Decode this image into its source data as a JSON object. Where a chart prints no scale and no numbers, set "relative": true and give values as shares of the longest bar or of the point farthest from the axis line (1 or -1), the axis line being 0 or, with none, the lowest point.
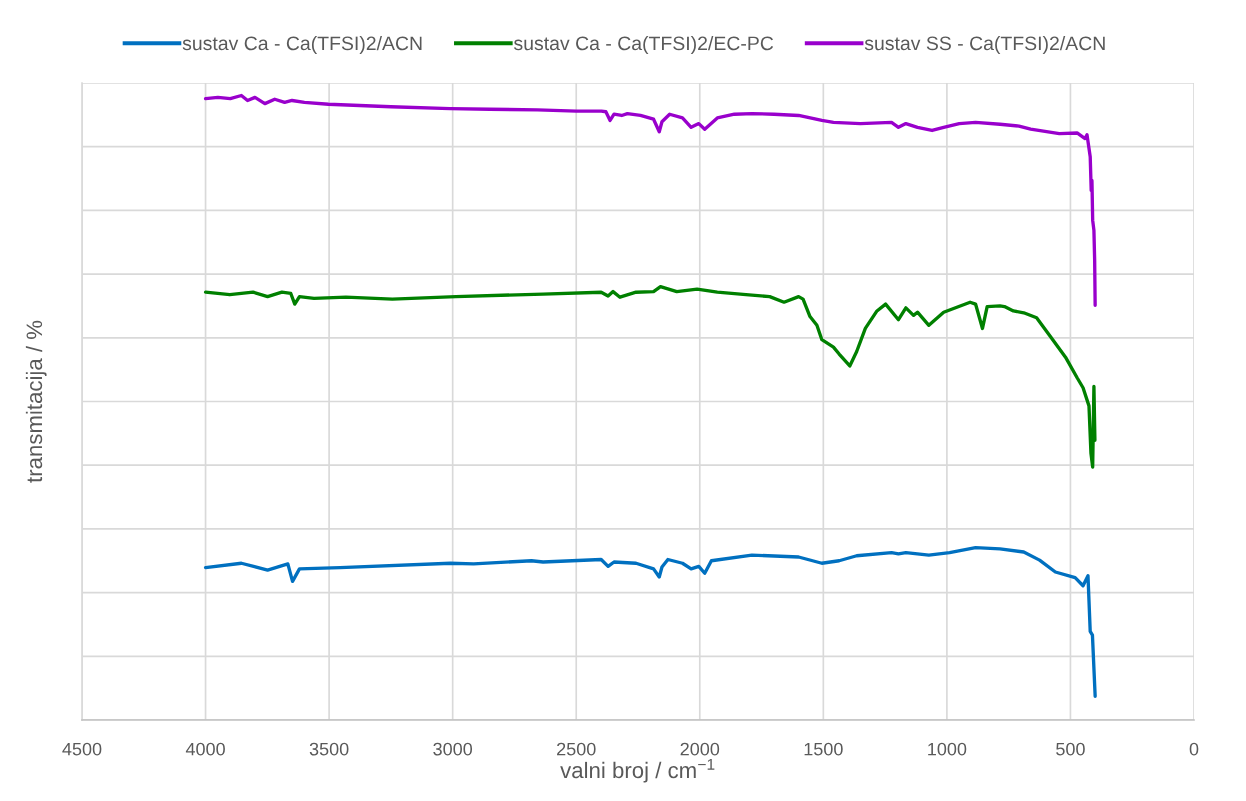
{
  "chart_data": {
    "type": "line",
    "relative": true,
    "xlabel": "valni broj / cm$^{−1}$",
    "ylabel": "transmitacija / %",
    "xlim": [
      4500,
      0
    ],
    "xticks": [
      4500,
      4000,
      3500,
      3000,
      2500,
      2000,
      1500,
      1000,
      500,
      0
    ],
    "grid": true,
    "legend": "top",
    "line_style": "solid",
    "series": [
      {
        "name": "sustav Ca - Ca(TFSI)2/ACN",
        "color": "#0070c0",
        "x": [
          4000,
          3855,
          3749,
          3667,
          3648,
          3620,
          3456,
          3009,
          2915,
          2681,
          2634,
          2399,
          2371,
          2347,
          2258,
          2187,
          2164,
          2153,
          2129,
          2070,
          2035,
          2004,
          1980,
          1953,
          1789,
          1600,
          1506,
          1436,
          1365,
          1224,
          1196,
          1166,
          1073,
          989,
          884,
          785,
          689,
          625,
          561,
          481,
          449,
          429,
          420,
          411,
          400
        ],
        "values": [
          0.244,
          0.251,
          0.24,
          0.25,
          0.222,
          0.242,
          0.244,
          0.251,
          0.25,
          0.255,
          0.253,
          0.257,
          0.246,
          0.253,
          0.251,
          0.242,
          0.229,
          0.245,
          0.257,
          0.251,
          0.242,
          0.246,
          0.235,
          0.255,
          0.264,
          0.261,
          0.251,
          0.255,
          0.263,
          0.268,
          0.266,
          0.268,
          0.264,
          0.268,
          0.276,
          0.274,
          0.269,
          0.256,
          0.237,
          0.228,
          0.215,
          0.231,
          0.142,
          0.136,
          0.038
        ]
      },
      {
        "name": "sustav Ca - Ca(TFSI)2/EC-PC",
        "color": "#008000",
        "x": [
          4000,
          3902,
          3808,
          3749,
          3691,
          3655,
          3639,
          3620,
          3561,
          3432,
          3244,
          2987,
          2634,
          2399,
          2371,
          2351,
          2323,
          2258,
          2187,
          2159,
          2093,
          2011,
          1929,
          1813,
          1717,
          1659,
          1600,
          1582,
          1554,
          1526,
          1506,
          1459,
          1436,
          1393,
          1365,
          1330,
          1283,
          1248,
          1196,
          1166,
          1135,
          1119,
          1073,
          1013,
          906,
          884,
          856,
          837,
          785,
          767,
          731,
          689,
          637,
          579,
          520,
          473,
          449,
          425,
          417,
          410,
          405,
          401
        ],
        "values": [
          0.685,
          0.681,
          0.685,
          0.678,
          0.685,
          0.683,
          0.666,
          0.678,
          0.675,
          0.677,
          0.674,
          0.678,
          0.682,
          0.685,
          0.679,
          0.686,
          0.677,
          0.685,
          0.686,
          0.694,
          0.686,
          0.69,
          0.685,
          0.681,
          0.678,
          0.669,
          0.678,
          0.674,
          0.646,
          0.632,
          0.609,
          0.597,
          0.586,
          0.567,
          0.59,
          0.627,
          0.655,
          0.666,
          0.641,
          0.66,
          0.648,
          0.653,
          0.632,
          0.653,
          0.669,
          0.666,
          0.627,
          0.662,
          0.663,
          0.662,
          0.655,
          0.652,
          0.644,
          0.613,
          0.581,
          0.548,
          0.532,
          0.503,
          0.427,
          0.405,
          0.534,
          0.448
        ]
      },
      {
        "name": "sustav SS - Ca(TFSI)2/ACN",
        "color": "#9900cc",
        "x": [
          4000,
          3950,
          3900,
          3855,
          3830,
          3800,
          3760,
          3720,
          3680,
          3650,
          3600,
          3503,
          3250,
          3010,
          2850,
          2657,
          2500,
          2398,
          2380,
          2363,
          2347,
          2316,
          2293,
          2240,
          2187,
          2164,
          2153,
          2122,
          2070,
          2035,
          2004,
          1980,
          1929,
          1860,
          1789,
          1700,
          1600,
          1506,
          1459,
          1350,
          1224,
          1196,
          1166,
          1119,
          1060,
          1013,
          950,
          884,
          785,
          708,
          661,
          545,
          473,
          441,
          433,
          420,
          416,
          413,
          410,
          405,
          402,
          400
        ],
        "values": [
          0.995,
          0.997,
          0.995,
          1.0,
          0.992,
          0.997,
          0.987,
          0.994,
          0.989,
          0.992,
          0.989,
          0.986,
          0.982,
          0.979,
          0.978,
          0.977,
          0.975,
          0.975,
          0.974,
          0.96,
          0.97,
          0.968,
          0.971,
          0.968,
          0.962,
          0.942,
          0.958,
          0.97,
          0.964,
          0.949,
          0.955,
          0.946,
          0.964,
          0.97,
          0.971,
          0.97,
          0.968,
          0.96,
          0.957,
          0.955,
          0.957,
          0.949,
          0.955,
          0.949,
          0.944,
          0.949,
          0.955,
          0.957,
          0.954,
          0.951,
          0.946,
          0.939,
          0.94,
          0.931,
          0.937,
          0.902,
          0.848,
          0.864,
          0.8,
          0.784,
          0.736,
          0.664
        ]
      }
    ]
  }
}
